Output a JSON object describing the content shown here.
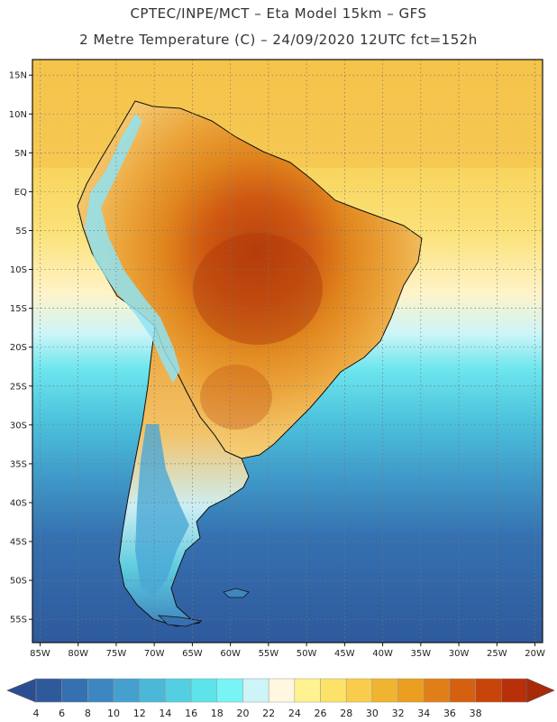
{
  "header": {
    "line1": "CPTEC/INPE/MCT –  Eta Model 15km – GFS",
    "line2": "2 Metre Temperature (C) – 24/09/2020 12UTC fct=152h"
  },
  "map": {
    "lon_range": [
      -86,
      -19
    ],
    "lat_range": [
      -58,
      17
    ],
    "lat_labels": [
      {
        "lat": 15,
        "text": "15N"
      },
      {
        "lat": 10,
        "text": "10N"
      },
      {
        "lat": 5,
        "text": "5N"
      },
      {
        "lat": 0,
        "text": "EQ"
      },
      {
        "lat": -5,
        "text": "5S"
      },
      {
        "lat": -10,
        "text": "10S"
      },
      {
        "lat": -15,
        "text": "15S"
      },
      {
        "lat": -20,
        "text": "20S"
      },
      {
        "lat": -25,
        "text": "25S"
      },
      {
        "lat": -30,
        "text": "30S"
      },
      {
        "lat": -35,
        "text": "35S"
      },
      {
        "lat": -40,
        "text": "40S"
      },
      {
        "lat": -45,
        "text": "45S"
      },
      {
        "lat": -50,
        "text": "50S"
      },
      {
        "lat": -55,
        "text": "55S"
      }
    ],
    "lon_labels": [
      {
        "lon": -85,
        "text": "85W"
      },
      {
        "lon": -80,
        "text": "80W"
      },
      {
        "lon": -75,
        "text": "75W"
      },
      {
        "lon": -70,
        "text": "70W"
      },
      {
        "lon": -65,
        "text": "65W"
      },
      {
        "lon": -60,
        "text": "60W"
      },
      {
        "lon": -55,
        "text": "55W"
      },
      {
        "lon": -50,
        "text": "50W"
      },
      {
        "lon": -45,
        "text": "45W"
      },
      {
        "lon": -40,
        "text": "40W"
      },
      {
        "lon": -35,
        "text": "35W"
      },
      {
        "lon": -30,
        "text": "30W"
      },
      {
        "lon": -25,
        "text": "25W"
      },
      {
        "lon": -20,
        "text": "20W"
      }
    ]
  },
  "legend": {
    "labels": [
      "4",
      "6",
      "8",
      "10",
      "12",
      "14",
      "16",
      "18",
      "20",
      "22",
      "24",
      "26",
      "28",
      "30",
      "32",
      "34",
      "36",
      "38"
    ],
    "colors": [
      "#2e5a9c",
      "#3570b0",
      "#3e86c0",
      "#45a0cf",
      "#4cb8d8",
      "#53cfe1",
      "#5de3ea",
      "#78f4f6",
      "#cdf5f8",
      "#fff7e0",
      "#fff290",
      "#fce268",
      "#f9cc4c",
      "#f0b430",
      "#eb9e20",
      "#e07e18",
      "#d46010",
      "#c84408",
      "#b8300a"
    ],
    "left_arrow_color": "#2b4e90",
    "right_arrow_color": "#a82a08"
  }
}
